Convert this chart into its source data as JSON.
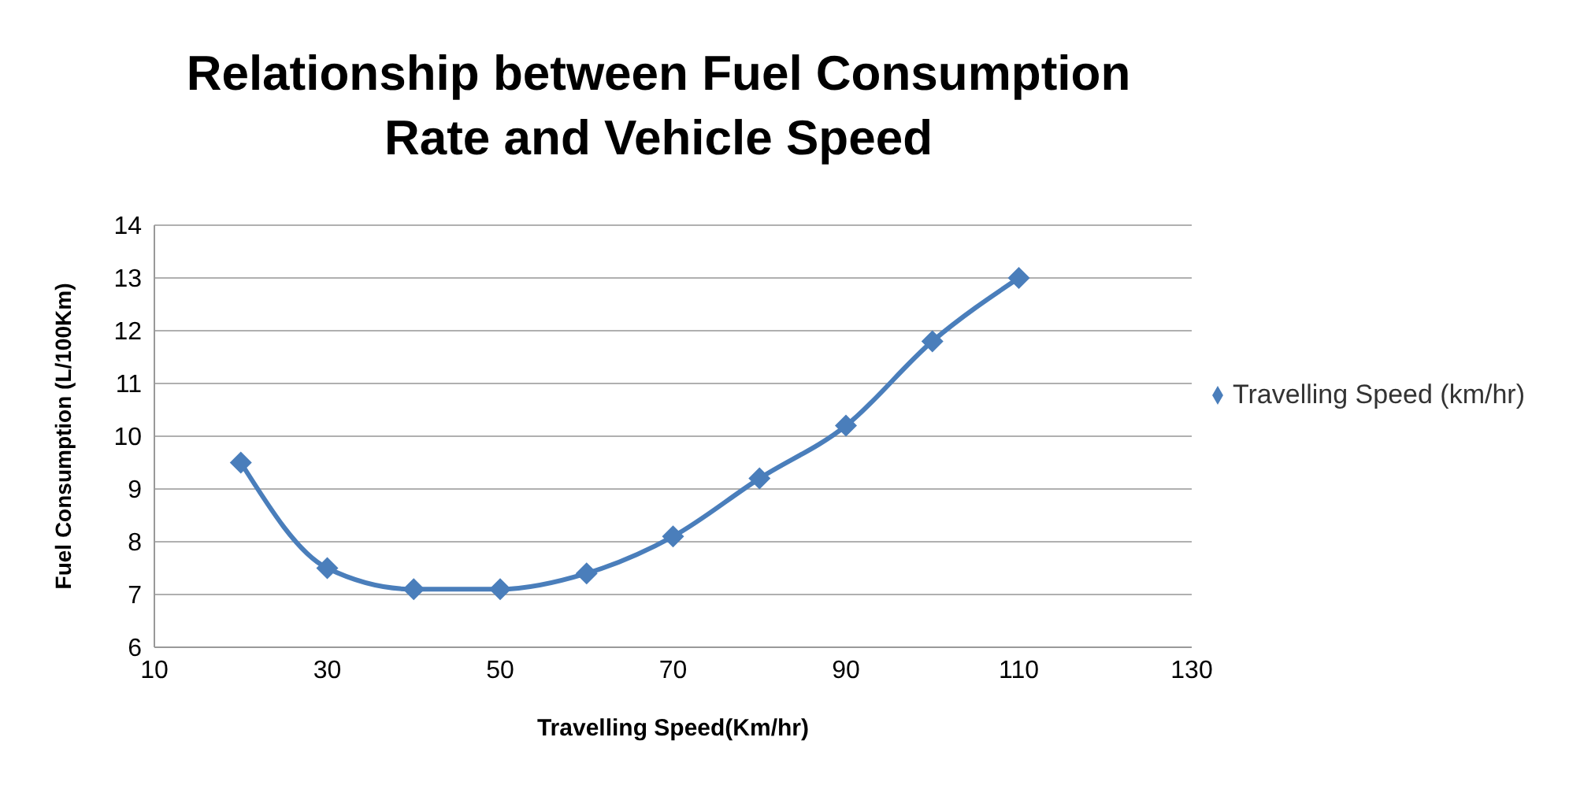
{
  "chart_data": {
    "type": "line",
    "title": "Relationship between Fuel Consumption Rate and Vehicle Speed",
    "xlabel": "Travelling Speed(Km/hr)",
    "ylabel": "Fuel Consumption (L/100Km)",
    "x": [
      20,
      30,
      40,
      50,
      60,
      70,
      80,
      90,
      100,
      110
    ],
    "series": [
      {
        "name": "Travelling Speed (km/hr)",
        "color": "#4a7ebb",
        "values": [
          9.5,
          7.5,
          7.1,
          7.1,
          7.4,
          8.1,
          9.2,
          10.2,
          11.8,
          13.0
        ]
      }
    ],
    "xlim": [
      10,
      130
    ],
    "xticks": [
      10,
      30,
      50,
      70,
      90,
      110,
      130
    ],
    "ylim": [
      6,
      14
    ],
    "yticks": [
      6,
      7,
      8,
      9,
      10,
      11,
      12,
      13,
      14
    ],
    "grid": "y",
    "legend": "right",
    "marker": "diamond",
    "line_style": "solid"
  }
}
